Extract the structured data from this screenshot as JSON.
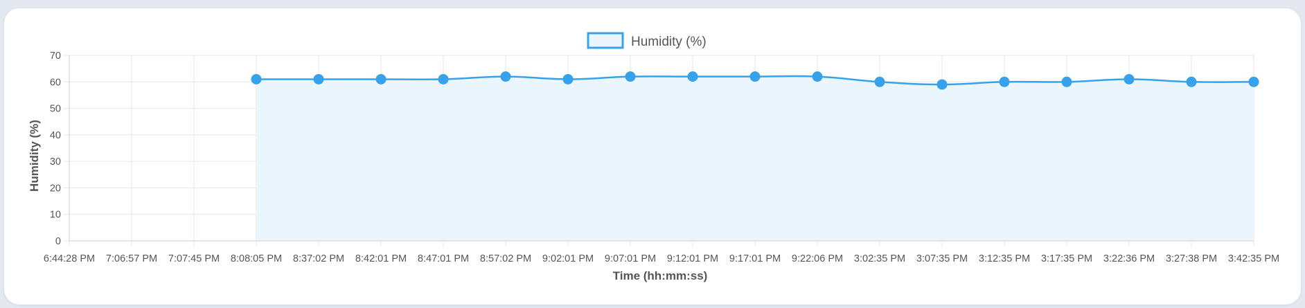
{
  "chart_data": {
    "type": "line",
    "fill": true,
    "xlabel": "Time (hh:mm:ss)",
    "ylabel": "Humidity (%)",
    "ylim": [
      0,
      70
    ],
    "ytick_step": 10,
    "grid": true,
    "legend_position": "top-center",
    "categories": [
      "6:44:28 PM",
      "7:06:57 PM",
      "7:07:45 PM",
      "8:08:05 PM",
      "8:37:02 PM",
      "8:42:01 PM",
      "8:47:01 PM",
      "8:57:02 PM",
      "9:02:01 PM",
      "9:07:01 PM",
      "9:12:01 PM",
      "9:17:01 PM",
      "9:22:06 PM",
      "3:02:35 PM",
      "3:07:35 PM",
      "3:12:35 PM",
      "3:17:35 PM",
      "3:22:36 PM",
      "3:27:38 PM",
      "3:42:35 PM"
    ],
    "series": [
      {
        "name": "Humidity (%)",
        "color": "#36a2eb",
        "fill_color": "#eaf5fd",
        "values": [
          null,
          null,
          null,
          61,
          61,
          61,
          61,
          62,
          61,
          62,
          62,
          62,
          62,
          60,
          59,
          60,
          60,
          61,
          60,
          60
        ]
      }
    ]
  }
}
